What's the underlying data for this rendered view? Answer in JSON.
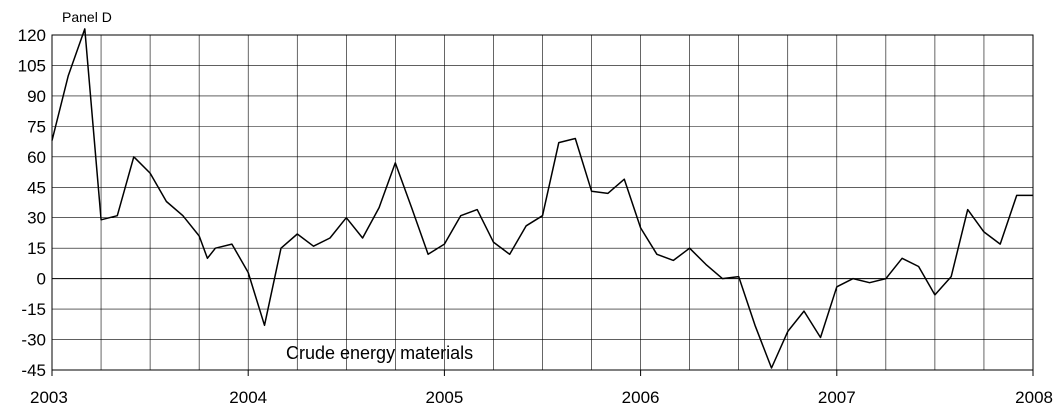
{
  "chart_data": {
    "type": "line",
    "panel_label": "Panel D",
    "annotation": "Crude energy materials",
    "xlim": [
      2003,
      2008
    ],
    "ylim": [
      -45,
      120
    ],
    "yticks": [
      120,
      105,
      90,
      75,
      60,
      45,
      30,
      15,
      0,
      -15,
      -30,
      -45
    ],
    "ytick_labels": [
      "120",
      "105",
      "90",
      "75",
      "60",
      "45",
      "30",
      "15",
      "0",
      "-15",
      "-30",
      "-45"
    ],
    "xticks": [
      2003,
      2004,
      2005,
      2006,
      2007,
      2008
    ],
    "xtick_labels": [
      "2003",
      "2004",
      "2005",
      "2006",
      "2007",
      "2008"
    ],
    "grid": true,
    "series": [
      {
        "x": [
          2003.0,
          2003.083,
          2003.167,
          2003.25,
          2003.333,
          2003.417,
          2003.5,
          2003.583,
          2003.667,
          2003.75,
          2003.792,
          2003.833,
          2003.917,
          2004.0,
          2004.083,
          2004.167,
          2004.25,
          2004.333,
          2004.417,
          2004.5,
          2004.583,
          2004.667,
          2004.75,
          2004.833,
          2004.917,
          2005.0,
          2005.083,
          2005.167,
          2005.25,
          2005.333,
          2005.417,
          2005.5,
          2005.583,
          2005.667,
          2005.75,
          2005.833,
          2005.917,
          2006.0,
          2006.083,
          2006.167,
          2006.25,
          2006.333,
          2006.417,
          2006.5,
          2006.583,
          2006.667,
          2006.75,
          2006.833,
          2006.917,
          2007.0,
          2007.083,
          2007.167,
          2007.25,
          2007.333,
          2007.417,
          2007.5,
          2007.583,
          2007.667,
          2007.75,
          2007.833,
          2007.917,
          2008.0
        ],
        "y": [
          68,
          100,
          123,
          29,
          31,
          60,
          52,
          38,
          31,
          21,
          10,
          15,
          17,
          3,
          -23,
          15,
          22,
          16,
          20,
          30,
          20,
          35,
          57,
          35,
          12,
          17,
          31,
          34,
          18,
          12,
          26,
          31,
          67,
          69,
          43,
          42,
          49,
          25,
          12,
          9,
          15,
          7,
          0,
          1,
          -23,
          -44,
          -26,
          -16,
          -29,
          -4,
          0,
          -2,
          0,
          10,
          6,
          -8,
          1,
          34,
          23,
          17,
          41,
          41
        ]
      }
    ]
  }
}
